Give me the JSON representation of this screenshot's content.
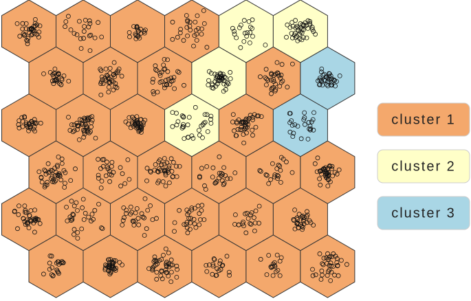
{
  "grid": {
    "cells": [
      [
        1,
        1,
        1,
        1,
        2,
        2
      ],
      [
        1,
        1,
        1,
        2,
        1,
        3
      ],
      [
        1,
        1,
        1,
        2,
        1,
        3
      ],
      [
        1,
        1,
        1,
        1,
        1,
        1
      ],
      [
        1,
        1,
        1,
        1,
        1,
        1
      ],
      [
        1,
        1,
        1,
        1,
        1,
        1
      ]
    ]
  },
  "legend": [
    {
      "label": "cluster 1",
      "color": "#f4a86c"
    },
    {
      "label": "cluster 2",
      "color": "#ffffc8"
    },
    {
      "label": "cluster 3",
      "color": "#a9d6e5"
    }
  ]
}
